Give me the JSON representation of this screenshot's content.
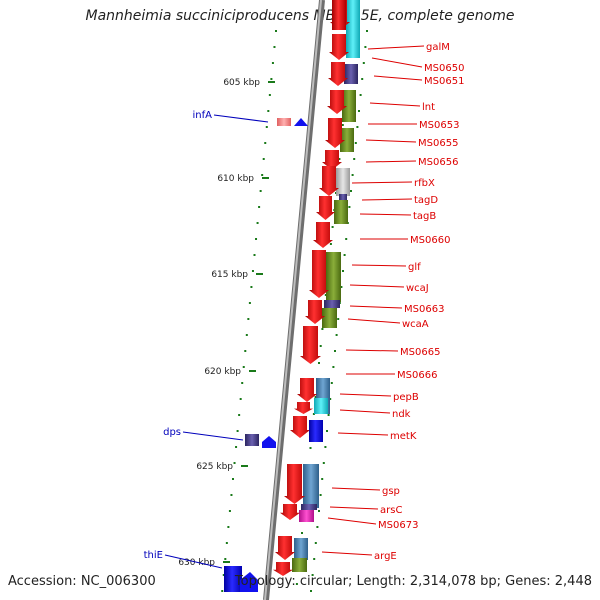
{
  "title": "Mannheimia succiniciproducens MBEL55E, complete genome",
  "accession": "Accession: NC_006300",
  "summary": "Topology: circular; Length: 2,314,078 bp; Genes: 2,448",
  "kbp_marks": [
    {
      "label": "605 kbp"
    },
    {
      "label": "610 kbp"
    },
    {
      "label": "615 kbp"
    },
    {
      "label": "620 kbp"
    },
    {
      "label": "625 kbp"
    },
    {
      "label": "630 kbp"
    }
  ],
  "right_genes": [
    "galM",
    "MS0650",
    "MS0651",
    "lnt",
    "MS0653",
    "MS0655",
    "MS0656",
    "rfbX",
    "tagD",
    "tagB",
    "MS0660",
    "glf",
    "wcaJ",
    "MS0663",
    "wcaA",
    "MS0665",
    "MS0666",
    "pepB",
    "ndk",
    "metK",
    "gsp",
    "arsC",
    "MS0673",
    "argE"
  ],
  "left_genes": [
    "infA",
    "dps",
    "thiE"
  ],
  "colors": {
    "gene_red": "#ee1111",
    "gene_blue": "#1111ee",
    "label_red": "#dd0000",
    "label_blue": "#0000bb",
    "olive": "#6b8c23",
    "steel": "#4682b4",
    "cyan": "#22d4e0",
    "slate": "#483d8b",
    "tick_green": "#1a7a1a",
    "backbone": "#888888"
  }
}
